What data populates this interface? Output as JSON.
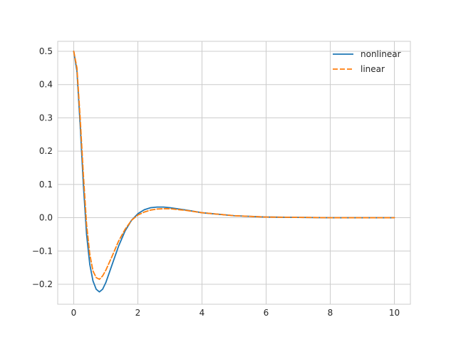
{
  "chart_data": {
    "type": "line",
    "title": "",
    "xlabel": "",
    "ylabel": "",
    "xlim": [
      -0.5,
      10.5
    ],
    "ylim": [
      -0.26,
      0.53
    ],
    "xticks": [
      0,
      2,
      4,
      6,
      8,
      10
    ],
    "yticks": [
      -0.2,
      -0.1,
      0.0,
      0.1,
      0.2,
      0.3,
      0.4,
      0.5
    ],
    "xtick_labels": [
      "0",
      "2",
      "4",
      "6",
      "8",
      "10"
    ],
    "ytick_labels": [
      "−0.2",
      "−0.1",
      "0.0",
      "0.1",
      "0.2",
      "0.3",
      "0.4",
      "0.5"
    ],
    "grid": true,
    "legend_position": "top-right",
    "series": [
      {
        "name": "nonlinear",
        "color": "#1f77b4",
        "style": "solid",
        "x": [
          0.0,
          0.1,
          0.2,
          0.3,
          0.4,
          0.5,
          0.6,
          0.7,
          0.8,
          0.9,
          1.0,
          1.2,
          1.4,
          1.6,
          1.8,
          2.0,
          2.2,
          2.4,
          2.6,
          2.8,
          3.0,
          3.5,
          4.0,
          5.0,
          6.0,
          7.0,
          8.0,
          9.0,
          10.0
        ],
        "y": [
          0.5,
          0.44,
          0.28,
          0.1,
          -0.05,
          -0.14,
          -0.19,
          -0.215,
          -0.223,
          -0.215,
          -0.195,
          -0.14,
          -0.085,
          -0.04,
          -0.008,
          0.012,
          0.024,
          0.03,
          0.032,
          0.032,
          0.03,
          0.023,
          0.015,
          0.006,
          0.002,
          0.001,
          0.0,
          0.0,
          0.0
        ]
      },
      {
        "name": "linear",
        "color": "#ff7f0e",
        "style": "dashed",
        "x": [
          0.0,
          0.1,
          0.2,
          0.3,
          0.4,
          0.5,
          0.6,
          0.7,
          0.8,
          0.9,
          1.0,
          1.2,
          1.4,
          1.6,
          1.8,
          2.0,
          2.2,
          2.4,
          2.6,
          2.8,
          3.0,
          3.5,
          4.0,
          5.0,
          6.0,
          7.0,
          8.0,
          9.0,
          10.0
        ],
        "y": [
          0.5,
          0.45,
          0.3,
          0.13,
          -0.02,
          -0.11,
          -0.16,
          -0.18,
          -0.185,
          -0.175,
          -0.158,
          -0.115,
          -0.07,
          -0.035,
          -0.008,
          0.008,
          0.017,
          0.023,
          0.026,
          0.027,
          0.027,
          0.022,
          0.015,
          0.006,
          0.002,
          0.001,
          0.0,
          0.0,
          0.0
        ]
      }
    ]
  }
}
